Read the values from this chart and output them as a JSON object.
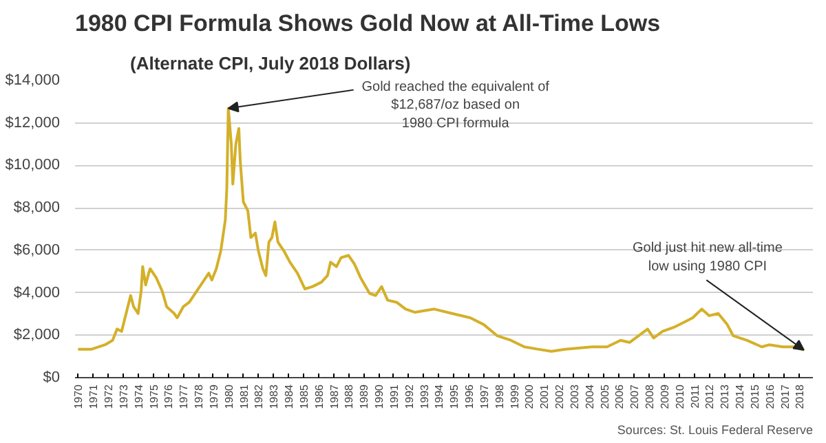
{
  "chart_data": {
    "type": "line",
    "title": "1980 CPI Formula Shows Gold Now at All-Time Lows",
    "subtitle": "(Alternate CPI, July 2018 Dollars)",
    "x": [
      1970,
      1970.9,
      1971.8,
      1972.3,
      1972.6,
      1972.9,
      1973.2,
      1973.5,
      1973.7,
      1974.0,
      1974.2,
      1974.3,
      1974.5,
      1974.7,
      1974.8,
      1975.2,
      1975.6,
      1975.9,
      1976.4,
      1976.6,
      1977.0,
      1977.4,
      1977.9,
      1978.3,
      1978.7,
      1978.9,
      1979.2,
      1979.5,
      1979.8,
      1979.9,
      1980.0,
      1980.2,
      1980.3,
      1980.5,
      1980.7,
      1980.8,
      1981.0,
      1981.3,
      1981.5,
      1981.8,
      1982.0,
      1982.3,
      1982.5,
      1982.7,
      1982.9,
      1983.1,
      1983.3,
      1983.7,
      1984.1,
      1984.6,
      1985.1,
      1985.6,
      1986.2,
      1986.6,
      1986.8,
      1987.2,
      1987.5,
      1988.0,
      1988.4,
      1988.8,
      1989.4,
      1989.8,
      1990.2,
      1990.6,
      1991.2,
      1991.8,
      1992.4,
      1993.7,
      1994.9,
      1996.1,
      1997.0,
      1997.9,
      1998.8,
      1999.7,
      2000.6,
      2001.5,
      2002.4,
      2003.3,
      2004.2,
      2005.2,
      2006.1,
      2006.7,
      2007.3,
      2007.9,
      2008.3,
      2008.9,
      2009.7,
      2010.3,
      2010.9,
      2011.5,
      2012.0,
      2012.6,
      2013.2,
      2013.6,
      2014.5,
      2015.5,
      2016.0,
      2016.9,
      2017.7,
      2018.3
    ],
    "series": [
      {
        "color": "#d4b02a",
        "values": [
          1340,
          1340,
          1550,
          1760,
          2290,
          2180,
          3020,
          3870,
          3340,
          3020,
          4080,
          5230,
          4370,
          4920,
          5130,
          4710,
          4080,
          3340,
          3020,
          2820,
          3340,
          3550,
          4080,
          4500,
          4920,
          4600,
          5130,
          5970,
          7430,
          8910,
          12687,
          11000,
          9120,
          11000,
          11740,
          10150,
          8280,
          7860,
          6600,
          6810,
          5970,
          5130,
          4810,
          6390,
          6600,
          7340,
          6390,
          5970,
          5440,
          4920,
          4180,
          4290,
          4500,
          4810,
          5440,
          5230,
          5650,
          5760,
          5340,
          4710,
          3970,
          3870,
          4290,
          3650,
          3550,
          3230,
          3080,
          3230,
          3020,
          2820,
          2500,
          1970,
          1760,
          1450,
          1340,
          1240,
          1340,
          1390,
          1450,
          1450,
          1760,
          1660,
          1970,
          2290,
          1870,
          2180,
          2390,
          2600,
          2820,
          3230,
          2920,
          3020,
          2500,
          1970,
          1760,
          1450,
          1550,
          1450,
          1450,
          1300
        ]
      }
    ],
    "xlim": [
      1969.8,
      2018.9
    ],
    "xticks": [
      1970,
      1971,
      1972,
      1973,
      1974,
      1975,
      1976,
      1977,
      1978,
      1979,
      1980,
      1981,
      1982,
      1983,
      1984,
      1985,
      1986,
      1987,
      1988,
      1989,
      1990,
      1991,
      1992,
      1993,
      1994,
      1995,
      1996,
      1997,
      1998,
      1999,
      2000,
      2001,
      2002,
      2003,
      2004,
      2005,
      2006,
      2007,
      2008,
      2009,
      2010,
      2011,
      2012,
      2013,
      2014,
      2015,
      2016,
      2017,
      2018
    ],
    "ylim": [
      0,
      14000
    ],
    "yticks": [
      {
        "value": 0,
        "label": "$0"
      },
      {
        "value": 2000,
        "label": "$2,000"
      },
      {
        "value": 4000,
        "label": "$4,000"
      },
      {
        "value": 6000,
        "label": "$6,000"
      },
      {
        "value": 8000,
        "label": "$8,000"
      },
      {
        "value": 10000,
        "label": "$10,000"
      },
      {
        "value": 12000,
        "label": "$12,000"
      },
      {
        "value": 14000,
        "label": "$14,000"
      }
    ],
    "grid": "y",
    "line_style": "solid",
    "annotations": [
      {
        "text": "Gold reached the equivalent of\n$12,687/oz based on\n1980 CPI formula",
        "x": 1980.0,
        "y": 12687
      },
      {
        "text": "Gold just hit new all-time\nlow using 1980 CPI",
        "x": 2018.3,
        "y": 1300
      },
      "Sources: St. Louis Federal Reserve"
    ]
  }
}
